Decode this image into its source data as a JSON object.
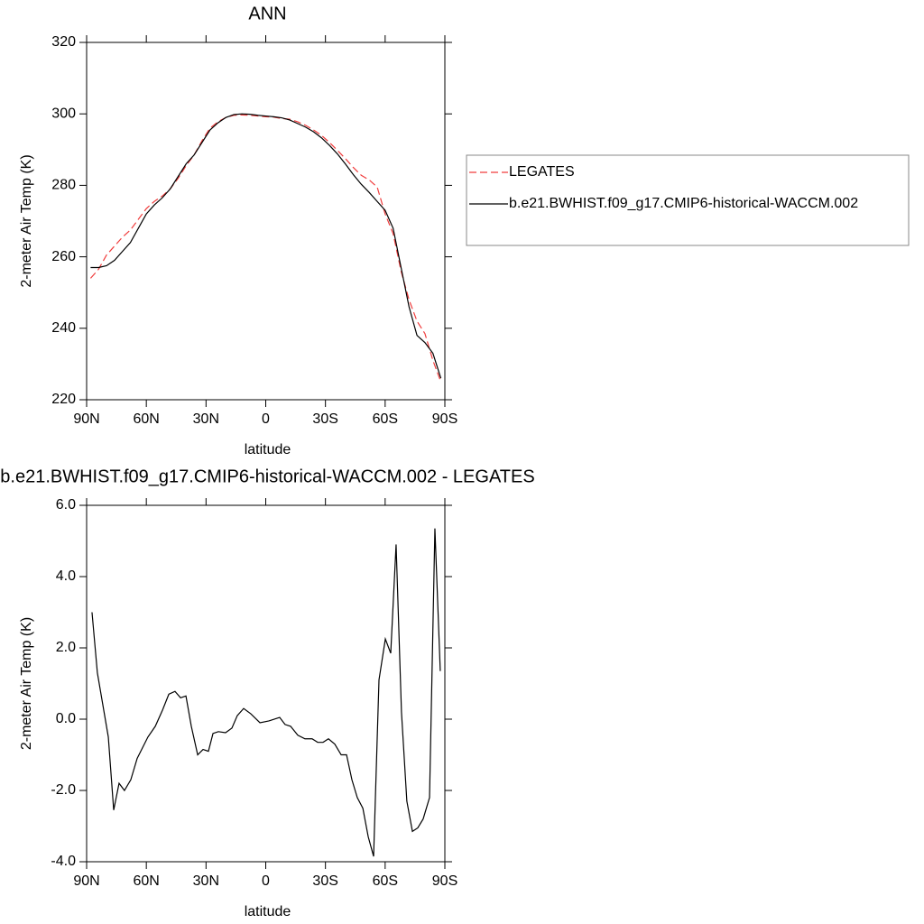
{
  "chart_data": [
    {
      "type": "line",
      "title": "ANN",
      "xlabel": "latitude",
      "ylabel": "2-meter Air Temp (K)",
      "x": [
        88,
        84,
        80,
        76,
        72,
        68,
        64,
        60,
        56,
        52,
        48,
        44,
        40,
        36,
        32,
        28,
        24,
        20,
        16,
        12,
        8,
        4,
        0,
        -4,
        -8,
        -12,
        -16,
        -20,
        -24,
        -28,
        -32,
        -36,
        -40,
        -44,
        -48,
        -52,
        -56,
        -60,
        -64,
        -68,
        -72,
        -76,
        -80,
        -84,
        -88
      ],
      "series": [
        {
          "name": "LEGATES",
          "color": "#f03c3c",
          "style": "dashed",
          "values": [
            254,
            256.5,
            260.5,
            263,
            265.5,
            267.5,
            270.5,
            273.5,
            275.5,
            277,
            279,
            282,
            285.5,
            288.5,
            292.5,
            296,
            297.8,
            299,
            299.6,
            299.7,
            299.6,
            299.4,
            299.2,
            299.1,
            298.7,
            298.5,
            297.8,
            296.8,
            295.5,
            294,
            292,
            289.8,
            287.5,
            285,
            282.8,
            281.5,
            279.5,
            272,
            266.5,
            256,
            248,
            242,
            238.5,
            231,
            225
          ]
        },
        {
          "name": "b.e21.BWHIST.f09_g17.CMIP6-historical-WACCM.002",
          "color": "#000000",
          "style": "solid",
          "values": [
            257,
            257,
            257.5,
            259,
            261.5,
            264,
            268,
            272,
            274.5,
            276.5,
            279,
            282.5,
            286,
            288.5,
            292,
            295.5,
            297.5,
            299,
            299.8,
            300,
            299.9,
            299.6,
            299.4,
            299.2,
            298.9,
            298.3,
            297.3,
            296.3,
            295,
            293.3,
            291.2,
            288.8,
            286,
            283,
            280.3,
            278,
            275.5,
            273,
            268,
            257,
            246,
            238,
            236,
            233,
            226
          ]
        }
      ],
      "xlim": [
        90,
        -90
      ],
      "xticks": [
        {
          "value": 90,
          "label": "90N"
        },
        {
          "value": 60,
          "label": "60N"
        },
        {
          "value": 30,
          "label": "30N"
        },
        0,
        {
          "value": -30,
          "label": "30S"
        },
        {
          "value": -60,
          "label": "60S"
        },
        {
          "value": -90,
          "label": "90S"
        }
      ],
      "ylim": [
        220,
        320
      ],
      "yticks": [
        220,
        240,
        260,
        280,
        300,
        320
      ],
      "legend": "outside-right"
    },
    {
      "type": "line",
      "title": "b.e21.BWHIST.f09_g17.CMIP6-historical-WACCM.002 - LEGATES",
      "xlabel": "latitude",
      "ylabel": "2-meter Air Temp (K)",
      "x": [
        87.3,
        84.6,
        79.1,
        76.4,
        73.7,
        71.0,
        67.8,
        64.6,
        59.2,
        55.5,
        51.9,
        48.7,
        45.6,
        42.8,
        40.1,
        37.4,
        34.2,
        31.5,
        28.8,
        26.5,
        23.8,
        20.2,
        17.0,
        14.3,
        11.1,
        7.5,
        2.9,
        -1.6,
        -7.0,
        -9.7,
        -12.5,
        -16.1,
        -19.7,
        -23.3,
        -26.1,
        -28.8,
        -31.5,
        -34.7,
        -37.9,
        -40.6,
        -43.3,
        -46.0,
        -48.8,
        -51.5,
        -54.2,
        -56.9,
        -60.1,
        -62.8,
        -65.5,
        -68.2,
        -70.9,
        -73.7,
        -76.4,
        -79.1,
        -82.3,
        -85.0,
        -87.7
      ],
      "values": [
        3.0,
        1.3,
        -0.5,
        -2.55,
        -1.8,
        -2.0,
        -1.7,
        -1.1,
        -0.5,
        -0.2,
        0.25,
        0.7,
        0.78,
        0.6,
        0.65,
        -0.2,
        -1.0,
        -0.85,
        -0.9,
        -0.4,
        -0.35,
        -0.38,
        -0.25,
        0.1,
        0.3,
        0.15,
        -0.1,
        -0.05,
        0.05,
        -0.15,
        -0.2,
        -0.45,
        -0.55,
        -0.55,
        -0.65,
        -0.65,
        -0.55,
        -0.7,
        -1.0,
        -1.0,
        -1.7,
        -2.2,
        -2.5,
        -3.3,
        -3.85,
        1.1,
        2.25,
        1.85,
        4.9,
        0.2,
        -2.3,
        -3.15,
        -3.05,
        -2.8,
        -2.2,
        5.35,
        1.35
      ],
      "color": "#000000",
      "xlim": [
        90,
        -90
      ],
      "xticks": [
        {
          "value": 90,
          "label": "90N"
        },
        {
          "value": 60,
          "label": "60N"
        },
        {
          "value": 30,
          "label": "30N"
        },
        0,
        {
          "value": -30,
          "label": "30S"
        },
        {
          "value": -60,
          "label": "60S"
        },
        {
          "value": -90,
          "label": "90S"
        }
      ],
      "ylim": [
        -4,
        6
      ],
      "yticks": [
        {
          "value": -4,
          "label": "-4.0"
        },
        {
          "value": -2,
          "label": "-2.0"
        },
        {
          "value": 0,
          "label": "0.0"
        },
        {
          "value": 2,
          "label": "2.0"
        },
        {
          "value": 4,
          "label": "4.0"
        },
        {
          "value": 6,
          "label": "6.0"
        }
      ]
    }
  ]
}
